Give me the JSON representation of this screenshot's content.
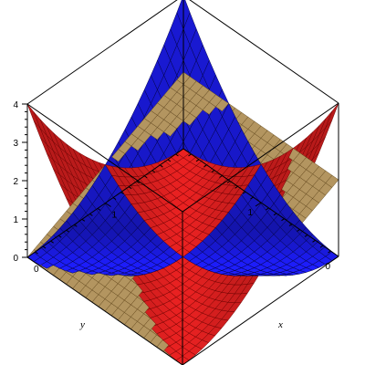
{
  "chart_data": {
    "type": "surface3d",
    "xlabel": "x",
    "ylabel": "y",
    "zlabel": "",
    "xlim": [
      0,
      2
    ],
    "ylim": [
      0,
      2
    ],
    "zlim": [
      0,
      4
    ],
    "x_ticks": [
      {
        "value": 0,
        "label": "0"
      },
      {
        "value": 1,
        "label": "1"
      }
    ],
    "y_ticks": [
      {
        "value": 0,
        "label": "0"
      },
      {
        "value": 1,
        "label": "1"
      }
    ],
    "z_ticks": [
      {
        "value": 0,
        "label": "0"
      },
      {
        "value": 1,
        "label": "1"
      },
      {
        "value": 2,
        "label": "2"
      },
      {
        "value": 3,
        "label": "3"
      },
      {
        "value": 4,
        "label": "4"
      }
    ],
    "grid_divisions": 24,
    "series": [
      {
        "key": "red-surface",
        "function": "(x - y)^2",
        "color": "#ee2222",
        "mesh": "#6a0000"
      },
      {
        "key": "blue-surface",
        "function": "(x + y - 2)^2",
        "color": "#1c1cee",
        "mesh": "#000040"
      },
      {
        "key": "gold-surface",
        "function": "x",
        "color": "#e0bb78",
        "mesh": "#5e4418"
      }
    ],
    "box": true
  }
}
